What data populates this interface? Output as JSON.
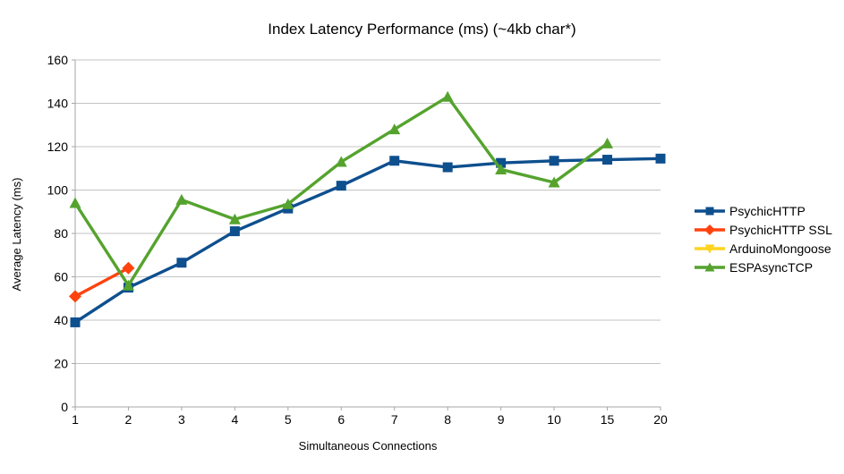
{
  "chart_data": {
    "type": "line",
    "title": "Index Latency Performance (ms) (~4kb char*)",
    "xlabel": "Simultaneous Connections",
    "ylabel": "Average Latency (ms)",
    "categories": [
      "1",
      "2",
      "3",
      "4",
      "5",
      "6",
      "7",
      "8",
      "9",
      "10",
      "15",
      "20"
    ],
    "ylim": [
      0,
      160
    ],
    "ytick_step": 20,
    "grid": "horizontal",
    "legend_position": "right",
    "series": [
      {
        "id": "psychichttp",
        "name": "PsychicHTTP",
        "color": "#0E4F8E",
        "marker": "square",
        "values": [
          39,
          55,
          66.5,
          81,
          91.5,
          102,
          113.5,
          110.5,
          112.5,
          113.5,
          114,
          114.5
        ]
      },
      {
        "id": "psychichttp-ssl",
        "name": "PsychicHTTP SSL",
        "color": "#FF420E",
        "marker": "diamond",
        "values": [
          51,
          64,
          null,
          null,
          null,
          null,
          null,
          null,
          null,
          null,
          null,
          null
        ]
      },
      {
        "id": "arduinomongoose",
        "name": "ArduinoMongoose",
        "color": "#FFD320",
        "marker": "triangle-down",
        "values": [
          null,
          null,
          null,
          null,
          null,
          null,
          null,
          null,
          null,
          null,
          null,
          null
        ]
      },
      {
        "id": "espasynctcp",
        "name": "ESPAsyncTCP",
        "color": "#55A32E",
        "marker": "triangle-up",
        "values": [
          94,
          56,
          95.5,
          86.5,
          93.5,
          113,
          128,
          143,
          109.5,
          103.5,
          121.5,
          null
        ]
      }
    ],
    "axis_color": "#a6a6a6",
    "gridline_color": "#c3c3c3",
    "text_color": "#000000"
  }
}
